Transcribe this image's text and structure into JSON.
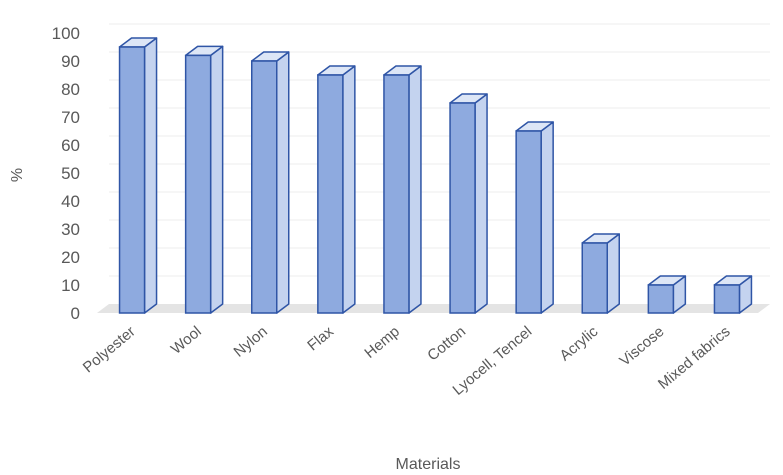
{
  "chart_data": {
    "type": "bar",
    "style": "3d-column",
    "categories": [
      "Polyester",
      "Wool",
      "Nylon",
      "Flax",
      "Hemp",
      "Cotton",
      "Lyocell, Tencel",
      "Acrylic",
      "Viscose",
      "Mixed fabrics"
    ],
    "values": [
      95,
      92,
      90,
      85,
      85,
      75,
      65,
      25,
      10,
      10
    ],
    "xlabel": "Materials",
    "ylabel": "%",
    "ylim": [
      0,
      100
    ],
    "yticks": [
      0,
      10,
      20,
      30,
      40,
      50,
      60,
      70,
      80,
      90,
      100
    ],
    "grid": true,
    "legend": "none",
    "colors": {
      "bar_front": "#8eaadf",
      "bar_side": "#c4d3ef",
      "bar_top": "#dde6f6",
      "bar_edge": "#2f55a6",
      "floor": "#e4e4e4",
      "grid": "#ececec",
      "text": "#595959"
    }
  }
}
